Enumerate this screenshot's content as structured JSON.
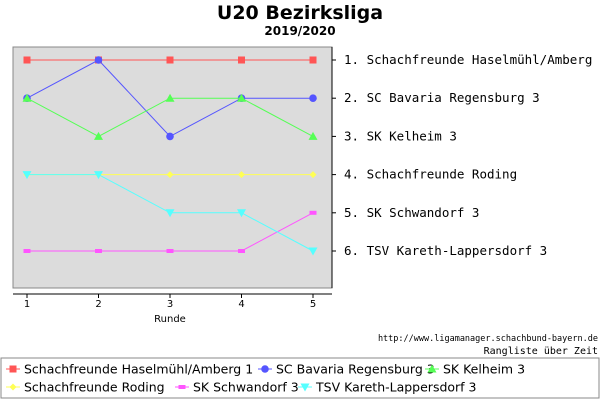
{
  "chart_data": {
    "type": "line",
    "title": "U20 Bezirksliga",
    "subtitle": "2019/2020",
    "xlabel": "Runde",
    "x": [
      1,
      2,
      3,
      4,
      5
    ],
    "ylim": [
      1,
      6
    ],
    "y_inverted": true,
    "grid": false,
    "legend_position": "bottom",
    "background_color": "#dcdcdc",
    "y_right_labels": [
      "1. Schachfreunde Haselmühl/Amberg 1",
      "2. SC Bavaria Regensburg 3",
      "3. SK Kelheim 3",
      "4. Schachfreunde Roding",
      "5. SK Schwandorf 3",
      "6. TSV Kareth-Lappersdorf 3"
    ],
    "series": [
      {
        "name": "Schachfreunde Haselmühl/Amberg 1",
        "color": "#ff5555",
        "marker": "square",
        "values": [
          1,
          1,
          1,
          1,
          1
        ]
      },
      {
        "name": "SC Bavaria Regensburg 3",
        "color": "#5555ff",
        "marker": "circle",
        "values": [
          2,
          1,
          3,
          2,
          2
        ]
      },
      {
        "name": "SK Kelheim 3",
        "color": "#55ff55",
        "marker": "triangle-up",
        "values": [
          2,
          3,
          2,
          2,
          3
        ]
      },
      {
        "name": "Schachfreunde Roding",
        "color": "#ffff55",
        "marker": "diamond",
        "values": [
          4,
          4,
          4,
          4,
          4
        ]
      },
      {
        "name": "SK Schwandorf 3",
        "color": "#ff55ff",
        "marker": "bar",
        "values": [
          6,
          6,
          6,
          6,
          5
        ]
      },
      {
        "name": "TSV Kareth-Lappersdorf 3",
        "color": "#55ffff",
        "marker": "triangle-down",
        "values": [
          4,
          4,
          5,
          5,
          6
        ]
      }
    ]
  },
  "footer": {
    "source_url": "http://www.ligamanager.schachbund-bayern.de",
    "caption": "Rangliste über Zeit"
  }
}
